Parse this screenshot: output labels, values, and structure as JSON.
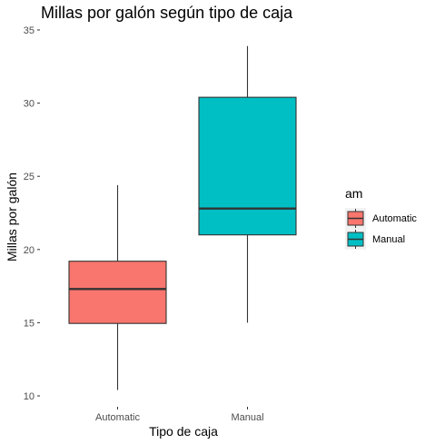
{
  "chart_data": {
    "type": "boxplot",
    "title": "Millas por galón según tipo de caja",
    "xlabel": "Tipo de caja",
    "ylabel": "Millas por galón",
    "ylim": [
      9.5,
      35.5
    ],
    "yticks": [
      10,
      15,
      20,
      25,
      30,
      35
    ],
    "categories": [
      "Automatic",
      "Manual"
    ],
    "boxes": [
      {
        "category": "Automatic",
        "whisker_low": 10.4,
        "q1": 14.95,
        "median": 17.3,
        "q3": 19.2,
        "whisker_high": 24.4,
        "color": "#F8766D"
      },
      {
        "category": "Manual",
        "whisker_low": 15.0,
        "q1": 21.0,
        "median": 22.8,
        "q3": 30.4,
        "whisker_high": 33.9,
        "color": "#00BFC4"
      }
    ],
    "legend": {
      "title": "am",
      "position": "right",
      "items": [
        {
          "label": "Automatic",
          "color": "#F8766D"
        },
        {
          "label": "Manual",
          "color": "#00BFC4"
        }
      ]
    },
    "grid": false
  }
}
